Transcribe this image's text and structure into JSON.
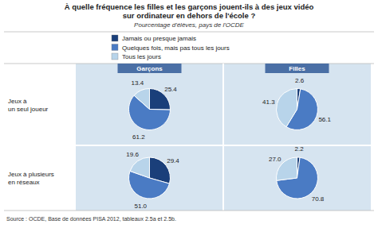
{
  "chart_data": {
    "type": "pie",
    "title": "À quelle fréquence les filles et les garçons jouent-ils à des jeux vidéo\nsur ordinateur en dehors de l'école ?",
    "subtitle": "Pourcentage d'élèves, pays de l'OCDE",
    "annotations": [
      "Source : OCDE, Base de données PISA 2012, tableaux 2.5a et 2.5b."
    ],
    "categories": [
      "Jamais ou presque jamais",
      "Quelques fois, mais pas tous les jours",
      "Tous les jours"
    ],
    "colors": [
      "#1a3f7a",
      "#4a7bc4",
      "#b8d4ea"
    ],
    "rows": [
      "Jeux à\nun seul joueur",
      "Jeux à plusieurs\nen réseaux"
    ],
    "columns": [
      "Garçons",
      "Filles"
    ],
    "legend": "top",
    "data_labels": true,
    "series": [
      {
        "values": [
          25.4,
          61.2,
          13.4
        ],
        "value_labels": [
          "25.4",
          "61.2",
          "13.4"
        ]
      },
      {
        "values": [
          2.6,
          56.1,
          41.3
        ],
        "value_labels": [
          "2.6",
          "56.1",
          "41.3"
        ]
      },
      {
        "values": [
          29.4,
          51.0,
          19.6
        ],
        "value_labels": [
          "29.4",
          "51.0",
          "19.6"
        ]
      },
      {
        "values": [
          2.2,
          70.8,
          27.0
        ],
        "value_labels": [
          "2.2",
          "70.8",
          "27.0"
        ]
      }
    ]
  }
}
